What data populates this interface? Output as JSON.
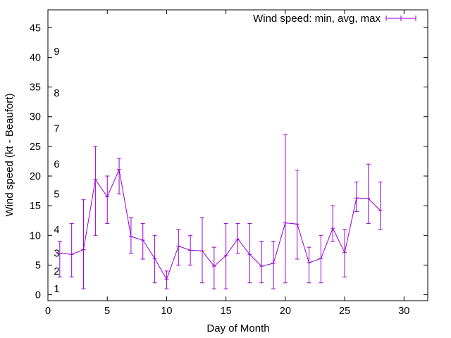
{
  "chart_data": {
    "type": "line",
    "xlabel": "Day of Month",
    "ylabel": "Wind speed (kt - Beaufort)",
    "xlim": [
      0,
      32
    ],
    "ylim": [
      -1,
      48
    ],
    "xticks": [
      0,
      5,
      10,
      15,
      20,
      25,
      30
    ],
    "yticks": [
      0,
      5,
      10,
      15,
      20,
      25,
      30,
      35,
      40,
      45
    ],
    "legend_position": "top-right",
    "grid": false,
    "series": [
      {
        "name": "Wind speed: min, avg, max",
        "color": "#9400d3",
        "error_bars": true,
        "x": [
          1,
          2,
          3,
          4,
          5,
          6,
          7,
          8,
          9,
          10,
          11,
          12,
          13,
          14,
          15,
          16,
          17,
          18,
          19,
          20,
          21,
          22,
          23,
          24,
          25,
          26,
          27,
          28
        ],
        "min": [
          3,
          3,
          1,
          10,
          12,
          17,
          7,
          6,
          2,
          1,
          5,
          5,
          2,
          1,
          1,
          7,
          2,
          2,
          1,
          2,
          6,
          2,
          2,
          9,
          3,
          14,
          12,
          11
        ],
        "avg": [
          7,
          6.8,
          7.6,
          19.4,
          16.5,
          21.1,
          9.8,
          9.2,
          6.1,
          2.6,
          8.2,
          7.5,
          7.4,
          4.8,
          6.6,
          9.4,
          6.8,
          4.8,
          5.3,
          12.1,
          11.9,
          5.4,
          6.1,
          11.2,
          7.1,
          16.3,
          16.2,
          14.2
        ],
        "max": [
          9,
          12,
          16,
          25,
          20,
          23,
          13,
          12,
          10,
          4,
          11,
          10,
          13,
          8,
          12,
          12,
          12,
          9,
          9,
          27,
          21,
          8,
          10,
          15,
          11,
          19,
          22,
          19
        ]
      }
    ],
    "annotations": [
      {
        "text": "1",
        "y": 1
      },
      {
        "text": "2",
        "y": 4
      },
      {
        "text": "3",
        "y": 7
      },
      {
        "text": "4",
        "y": 11
      },
      {
        "text": "5",
        "y": 17
      },
      {
        "text": "6",
        "y": 22
      },
      {
        "text": "7",
        "y": 28
      },
      {
        "text": "8",
        "y": 34
      },
      {
        "text": "9",
        "y": 41
      }
    ]
  }
}
